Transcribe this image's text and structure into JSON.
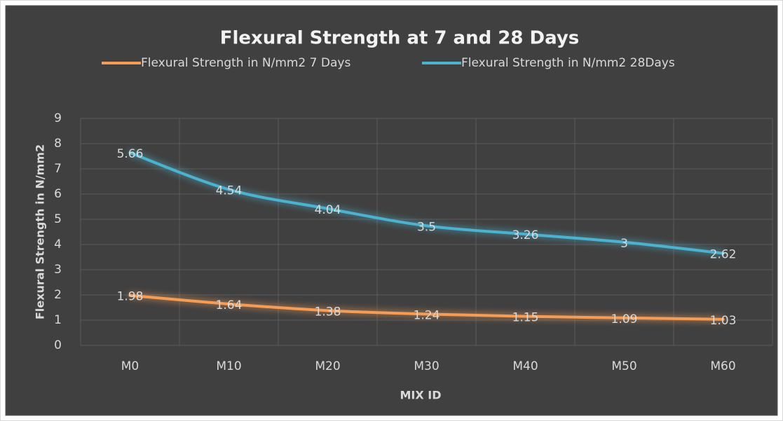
{
  "chart_data": {
    "type": "line",
    "stacked": true,
    "title": "Flexural Strength at 7 and 28 Days",
    "x_label": "MIX ID",
    "y_label": "Flexural Strength in N/mm2",
    "categories": [
      "M0",
      "M10",
      "M20",
      "M30",
      "M40",
      "M50",
      "M60"
    ],
    "series": [
      {
        "name": "Flexural Strength in N/mm2 7 Days",
        "color": "#f59d56",
        "values": [
          1.98,
          1.64,
          1.38,
          1.24,
          1.15,
          1.09,
          1.03
        ]
      },
      {
        "name": "Flexural Strength in N/mm2 28Days",
        "color": "#4bb3cf",
        "values": [
          5.66,
          4.54,
          4.04,
          3.5,
          3.26,
          3,
          2.62
        ]
      }
    ],
    "ylim": [
      0,
      9
    ],
    "yticks": [
      0,
      1,
      2,
      3,
      4,
      5,
      6,
      7,
      8,
      9
    ],
    "grid": true,
    "legend": "top"
  }
}
